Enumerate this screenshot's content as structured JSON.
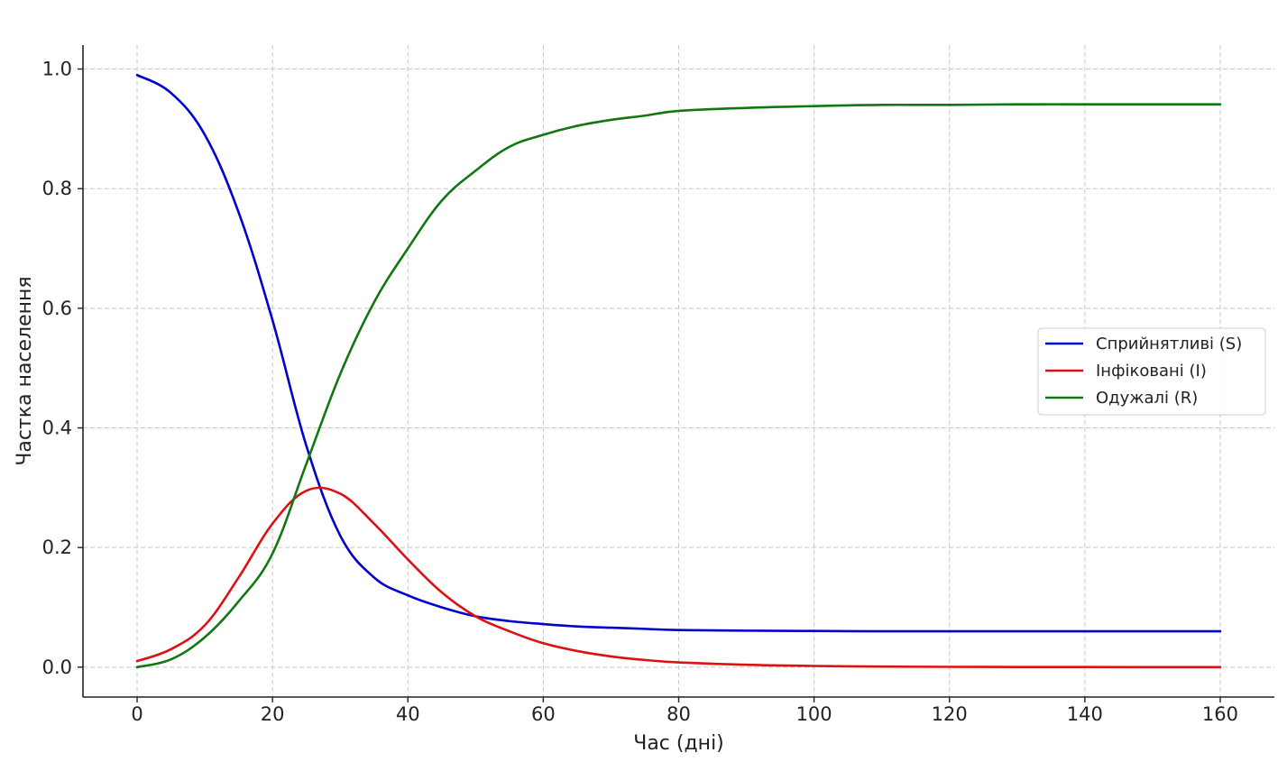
{
  "chart_data": {
    "type": "line",
    "title": "",
    "xlabel": "Час (дні)",
    "ylabel": "Частка населення",
    "xlim": [
      -8,
      168
    ],
    "ylim": [
      -0.05,
      1.04
    ],
    "xticks": [
      0,
      20,
      40,
      60,
      80,
      100,
      120,
      140,
      160
    ],
    "yticks": [
      0.0,
      0.2,
      0.4,
      0.6,
      0.8,
      1.0
    ],
    "xtick_labels": [
      "0",
      "20",
      "40",
      "60",
      "80",
      "100",
      "120",
      "140",
      "160"
    ],
    "ytick_labels": [
      "0.0",
      "0.2",
      "0.4",
      "0.6",
      "0.8",
      "1.0"
    ],
    "grid": true,
    "legend_position": "center-right",
    "x": [
      0,
      5,
      10,
      15,
      20,
      25,
      30,
      35,
      40,
      45,
      50,
      55,
      60,
      65,
      70,
      75,
      80,
      90,
      100,
      110,
      120,
      130,
      140,
      150,
      160
    ],
    "series": [
      {
        "name": "Сприйнятливі (S)",
        "color": "#0000cc",
        "values": [
          0.99,
          0.96,
          0.89,
          0.76,
          0.58,
          0.37,
          0.22,
          0.15,
          0.12,
          0.1,
          0.085,
          0.077,
          0.072,
          0.068,
          0.066,
          0.064,
          0.062,
          0.061,
          0.0605,
          0.06,
          0.06,
          0.06,
          0.06,
          0.06,
          0.06
        ]
      },
      {
        "name": "Інфіковані (І)",
        "color": "#dd1111",
        "values": [
          0.01,
          0.03,
          0.07,
          0.15,
          0.24,
          0.295,
          0.29,
          0.24,
          0.18,
          0.125,
          0.085,
          0.06,
          0.04,
          0.027,
          0.018,
          0.012,
          0.008,
          0.004,
          0.002,
          0.001,
          0.0005,
          0.0003,
          0.0002,
          0.0001,
          0.0001
        ]
      },
      {
        "name": "Одужалі (R)",
        "color": "#117711",
        "values": [
          0.0,
          0.013,
          0.05,
          0.11,
          0.19,
          0.34,
          0.49,
          0.61,
          0.7,
          0.78,
          0.83,
          0.87,
          0.89,
          0.905,
          0.915,
          0.922,
          0.93,
          0.935,
          0.938,
          0.94,
          0.94,
          0.941,
          0.941,
          0.941,
          0.941
        ]
      }
    ]
  }
}
